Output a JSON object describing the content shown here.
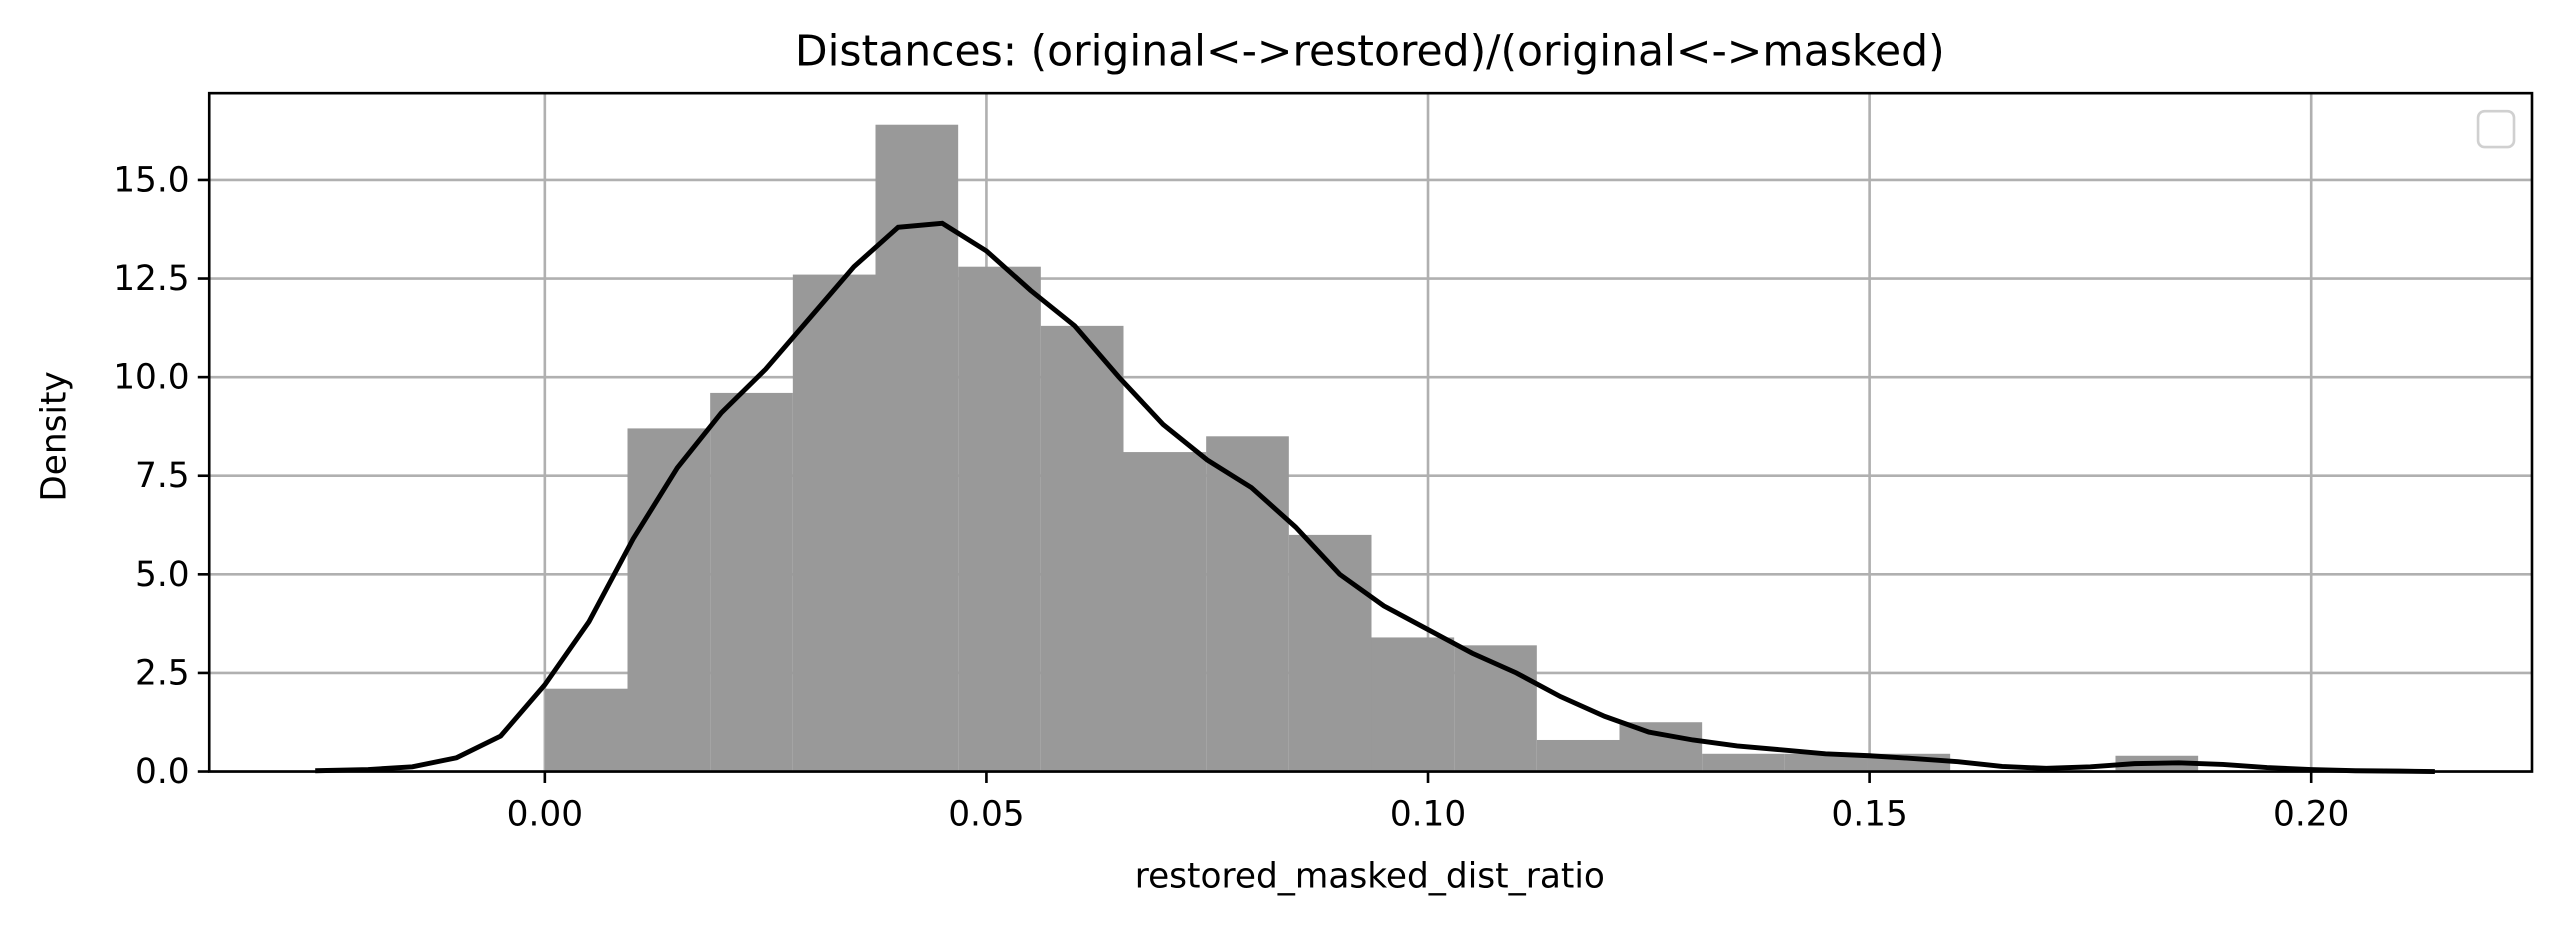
{
  "chart_data": {
    "type": "bar",
    "title": "Distances: (original<->restored)/(original<->masked)",
    "xlabel": "restored_masked_dist_ratio",
    "ylabel": "Density",
    "xlim": [
      -0.038,
      0.225
    ],
    "ylim": [
      0,
      17.2
    ],
    "x_ticks": [
      0.0,
      0.05,
      0.1,
      0.15,
      0.2
    ],
    "x_tick_labels": [
      "0.00",
      "0.05",
      "0.10",
      "0.15",
      "0.20"
    ],
    "y_ticks": [
      0.0,
      2.5,
      5.0,
      7.5,
      10.0,
      12.5,
      15.0
    ],
    "y_tick_labels": [
      "0.0",
      "2.5",
      "5.0",
      "7.5",
      "10.0",
      "12.5",
      "15.0"
    ],
    "grid": true,
    "legend": "top-right (empty)",
    "bar_color": "#999999",
    "line_color": "#000000",
    "histogram": {
      "bin_edges": [
        0.0,
        0.00936,
        0.01872,
        0.02808,
        0.03744,
        0.0468,
        0.05616,
        0.06552,
        0.07488,
        0.08424,
        0.0936,
        0.10296,
        0.11232,
        0.12168,
        0.13104,
        0.1404,
        0.14976,
        0.15912,
        0.16848,
        0.17784,
        0.1872
      ],
      "density": [
        2.1,
        8.7,
        9.6,
        12.6,
        16.4,
        12.8,
        11.3,
        8.1,
        8.5,
        6.0,
        3.4,
        3.2,
        0.8,
        1.25,
        0.45,
        0.45,
        0.45,
        0.0,
        0.0,
        0.4
      ]
    },
    "kde": {
      "x": [
        -0.026,
        -0.02,
        -0.015,
        -0.01,
        -0.005,
        0.0,
        0.005,
        0.01,
        0.015,
        0.02,
        0.025,
        0.03,
        0.035,
        0.04,
        0.045,
        0.05,
        0.055,
        0.06,
        0.065,
        0.07,
        0.075,
        0.08,
        0.085,
        0.09,
        0.095,
        0.1,
        0.105,
        0.11,
        0.115,
        0.12,
        0.125,
        0.13,
        0.135,
        0.14,
        0.145,
        0.15,
        0.155,
        0.16,
        0.165,
        0.17,
        0.175,
        0.18,
        0.185,
        0.19,
        0.195,
        0.2,
        0.205,
        0.21,
        0.214
      ],
      "y": [
        0.02,
        0.05,
        0.12,
        0.35,
        0.9,
        2.2,
        3.8,
        5.9,
        7.7,
        9.1,
        10.2,
        11.5,
        12.8,
        13.8,
        13.9,
        13.2,
        12.2,
        11.3,
        10.0,
        8.8,
        7.9,
        7.2,
        6.2,
        5.0,
        4.2,
        3.6,
        3.0,
        2.5,
        1.9,
        1.4,
        1.0,
        0.8,
        0.65,
        0.55,
        0.45,
        0.4,
        0.33,
        0.25,
        0.13,
        0.08,
        0.12,
        0.2,
        0.22,
        0.18,
        0.1,
        0.05,
        0.02,
        0.01,
        0.0
      ]
    }
  }
}
